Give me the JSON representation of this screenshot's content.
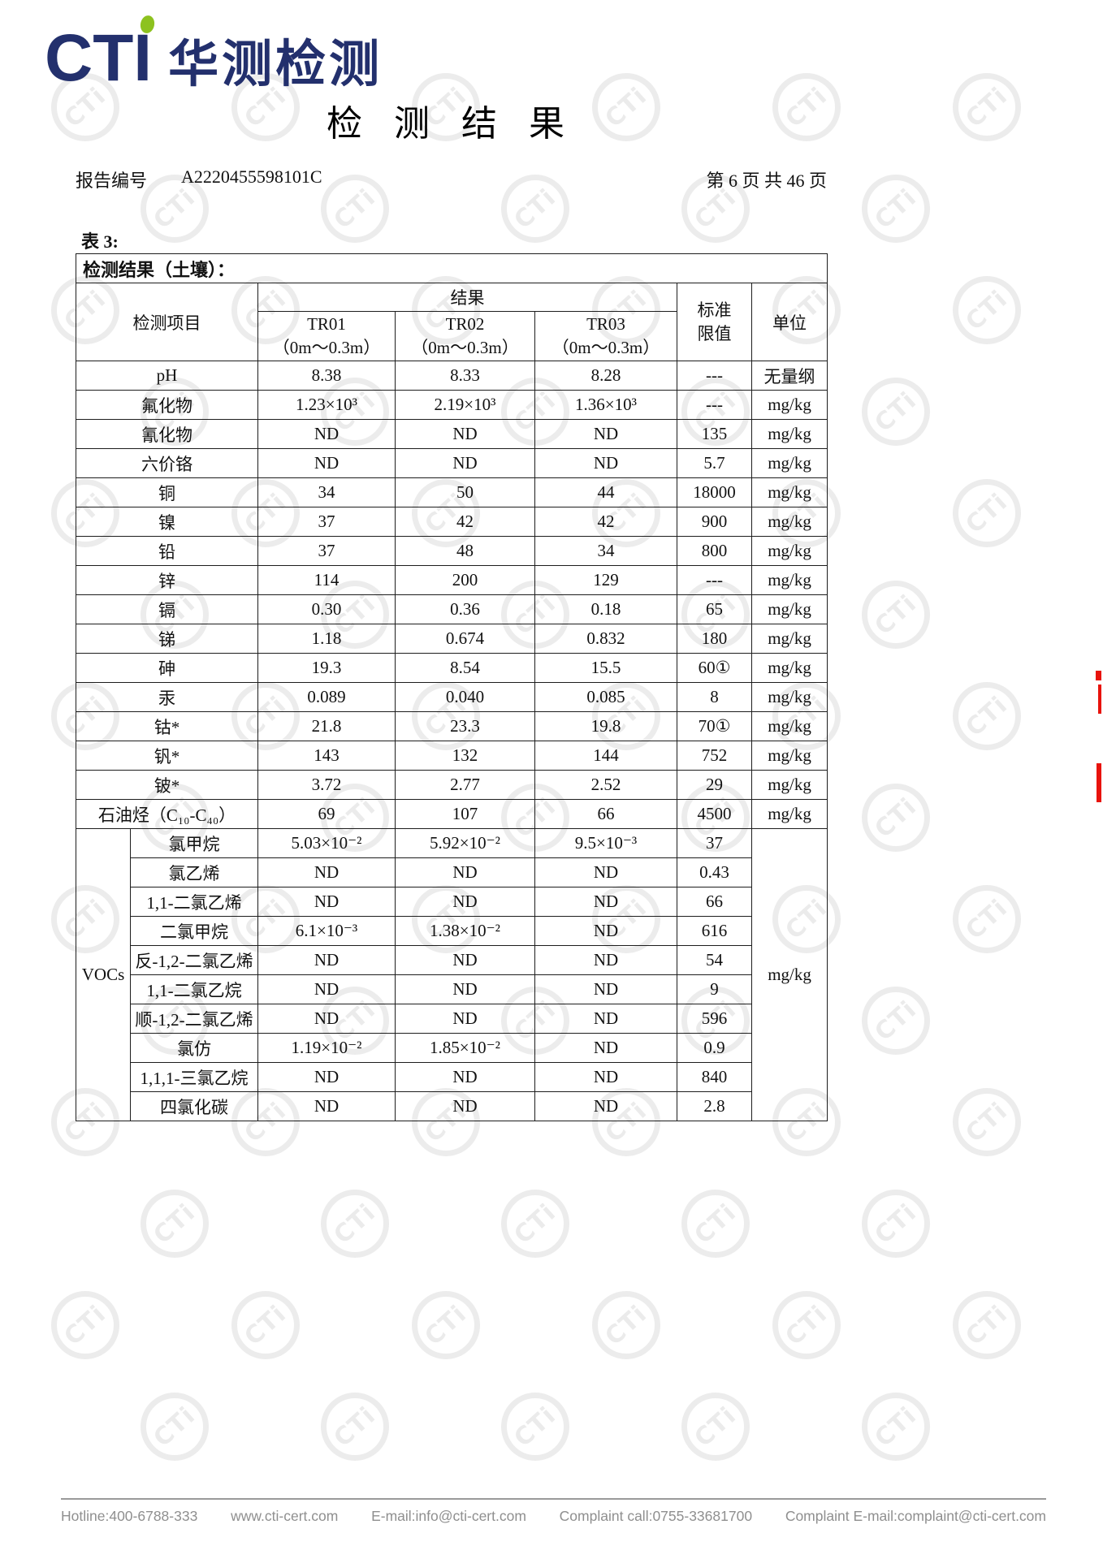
{
  "brand": {
    "logo_text": "CTI",
    "logo_cn": "华测检测",
    "watermark_text": "CTi",
    "navy": "#23306d",
    "green": "#8dc21f"
  },
  "header": {
    "title": "检 测 结 果",
    "report_no_label": "报告编号",
    "report_no": "A2220455598101C",
    "page_info": "第 6 页 共 46 页"
  },
  "table": {
    "caption": "表 3:",
    "subtitle": "检测结果（土壤）：",
    "col_item": "检测项目",
    "col_result": "结果",
    "col_limit_line1": "标准",
    "col_limit_line2": "限值",
    "col_unit": "单位",
    "samples": [
      {
        "id": "TR01",
        "depth": "（0m～0.3m）"
      },
      {
        "id": "TR02",
        "depth": "（0m～0.3m）"
      },
      {
        "id": "TR03",
        "depth": "（0m～0.3m）"
      }
    ],
    "rows": [
      {
        "item": "pH",
        "values": [
          "8.38",
          "8.33",
          "8.28"
        ],
        "limit": "---",
        "unit": "无量纲"
      },
      {
        "item": "氟化物",
        "values": [
          "1.23×10³",
          "2.19×10³",
          "1.36×10³"
        ],
        "limit": "---",
        "unit": "mg/kg"
      },
      {
        "item": "氰化物",
        "values": [
          "ND",
          "ND",
          "ND"
        ],
        "limit": "135",
        "unit": "mg/kg"
      },
      {
        "item": "六价铬",
        "values": [
          "ND",
          "ND",
          "ND"
        ],
        "limit": "5.7",
        "unit": "mg/kg"
      },
      {
        "item": "铜",
        "values": [
          "34",
          "50",
          "44"
        ],
        "limit": "18000",
        "unit": "mg/kg"
      },
      {
        "item": "镍",
        "values": [
          "37",
          "42",
          "42"
        ],
        "limit": "900",
        "unit": "mg/kg"
      },
      {
        "item": "铅",
        "values": [
          "37",
          "48",
          "34"
        ],
        "limit": "800",
        "unit": "mg/kg"
      },
      {
        "item": "锌",
        "values": [
          "114",
          "200",
          "129"
        ],
        "limit": "---",
        "unit": "mg/kg"
      },
      {
        "item": "镉",
        "values": [
          "0.30",
          "0.36",
          "0.18"
        ],
        "limit": "65",
        "unit": "mg/kg"
      },
      {
        "item": "锑",
        "values": [
          "1.18",
          "0.674",
          "0.832"
        ],
        "limit": "180",
        "unit": "mg/kg"
      },
      {
        "item": "砷",
        "values": [
          "19.3",
          "8.54",
          "15.5"
        ],
        "limit": "60①",
        "unit": "mg/kg"
      },
      {
        "item": "汞",
        "values": [
          "0.089",
          "0.040",
          "0.085"
        ],
        "limit": "8",
        "unit": "mg/kg"
      },
      {
        "item": "钴*",
        "values": [
          "21.8",
          "23.3",
          "19.8"
        ],
        "limit": "70①",
        "unit": "mg/kg"
      },
      {
        "item": "钒*",
        "values": [
          "143",
          "132",
          "144"
        ],
        "limit": "752",
        "unit": "mg/kg"
      },
      {
        "item": "铍*",
        "values": [
          "3.72",
          "2.77",
          "2.52"
        ],
        "limit": "29",
        "unit": "mg/kg"
      },
      {
        "item": "石油烃（C₁₀-C₄₀）",
        "values": [
          "69",
          "107",
          "66"
        ],
        "limit": "4500",
        "unit": "mg/kg"
      }
    ],
    "vocs": {
      "label": "VOCs",
      "unit": "mg/kg",
      "rows": [
        {
          "item": "氯甲烷",
          "values": [
            "5.03×10⁻²",
            "5.92×10⁻²",
            "9.5×10⁻³"
          ],
          "limit": "37"
        },
        {
          "item": "氯乙烯",
          "values": [
            "ND",
            "ND",
            "ND"
          ],
          "limit": "0.43"
        },
        {
          "item": "1,1-二氯乙烯",
          "values": [
            "ND",
            "ND",
            "ND"
          ],
          "limit": "66"
        },
        {
          "item": "二氯甲烷",
          "values": [
            "6.1×10⁻³",
            "1.38×10⁻²",
            "ND"
          ],
          "limit": "616"
        },
        {
          "item": "反-1,2-二氯乙烯",
          "values": [
            "ND",
            "ND",
            "ND"
          ],
          "limit": "54"
        },
        {
          "item": "1,1-二氯乙烷",
          "values": [
            "ND",
            "ND",
            "ND"
          ],
          "limit": "9"
        },
        {
          "item": "顺-1,2-二氯乙烯",
          "values": [
            "ND",
            "ND",
            "ND"
          ],
          "limit": "596"
        },
        {
          "item": "氯仿",
          "values": [
            "1.19×10⁻²",
            "1.85×10⁻²",
            "ND"
          ],
          "limit": "0.9"
        },
        {
          "item": "1,1,1-三氯乙烷",
          "values": [
            "ND",
            "ND",
            "ND"
          ],
          "limit": "840"
        },
        {
          "item": "四氯化碳",
          "values": [
            "ND",
            "ND",
            "ND"
          ],
          "limit": "2.8"
        }
      ]
    }
  },
  "footer": {
    "items": [
      "Hotline:400-6788-333",
      "www.cti-cert.com",
      "E-mail:info@cti-cert.com",
      "Complaint call:0755-33681700",
      "Complaint E-mail:complaint@cti-cert.com"
    ]
  }
}
